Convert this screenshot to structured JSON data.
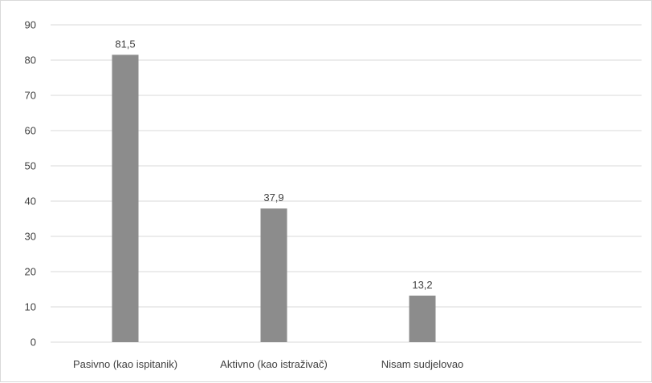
{
  "chart_data": {
    "type": "bar",
    "categories": [
      "Pasivno (kao ispitanik)",
      "Aktivno (kao istraživač)",
      "Nisam sudjelovao"
    ],
    "values": [
      81.5,
      37.9,
      13.2
    ],
    "value_labels": [
      "81,5",
      "37,9",
      "13,2"
    ],
    "ylim": [
      0,
      90
    ],
    "yticks": [
      0,
      10,
      20,
      30,
      40,
      50,
      60,
      70,
      80,
      90
    ],
    "grid": true,
    "legend": "none",
    "bar_color": "#8c8c8c"
  }
}
